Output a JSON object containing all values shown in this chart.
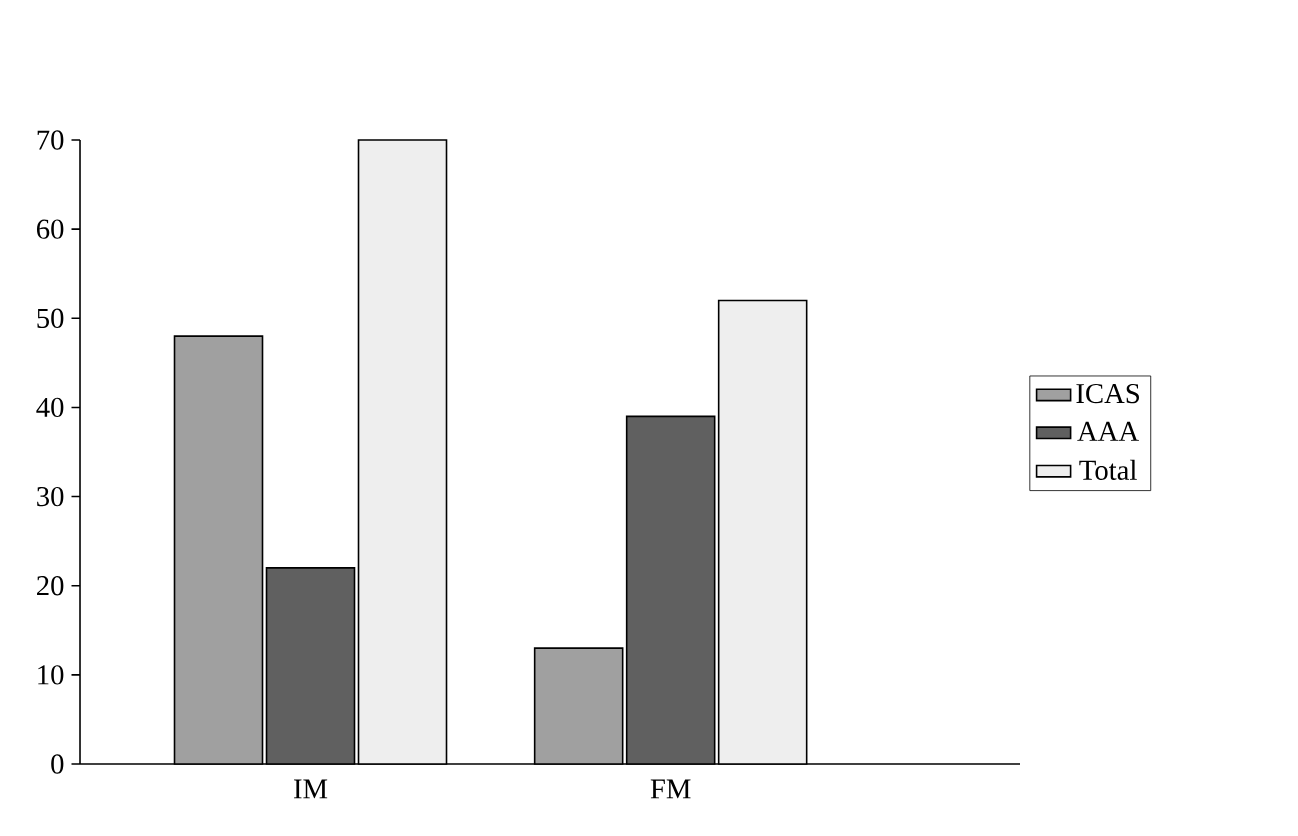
{
  "chart_data": {
    "type": "bar",
    "categories": [
      "IM",
      "FM"
    ],
    "series": [
      {
        "name": "ICAS",
        "color": "#a0a0a0",
        "values": [
          48,
          13
        ]
      },
      {
        "name": "AAA",
        "color": "#606060",
        "values": [
          22,
          39
        ]
      },
      {
        "name": "Total",
        "color": "#eeeeee",
        "values": [
          70,
          52
        ]
      }
    ],
    "ylim": [
      0,
      70
    ],
    "yticks": [
      0,
      10,
      20,
      30,
      40,
      50,
      60,
      70
    ],
    "legend": "right",
    "grid": false
  }
}
